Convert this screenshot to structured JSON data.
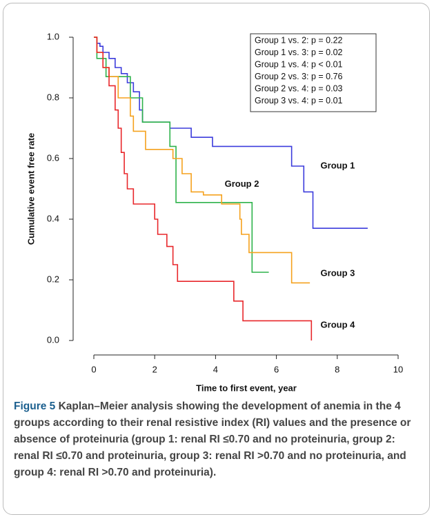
{
  "chart_data": {
    "type": "line",
    "xlabel": "Time to first event, year",
    "ylabel": "Cumulative event free rate",
    "xlim": [
      -0.5,
      10.5
    ],
    "ylim": [
      -0.05,
      1.05
    ],
    "xticks": [
      0,
      2,
      4,
      6,
      8,
      10
    ],
    "yticks": [
      {
        "value": 0,
        "label": "0.0"
      },
      {
        "value": 0.2,
        "label": "0.2"
      },
      {
        "value": 0.4,
        "label": "0.4"
      },
      {
        "value": 0.6,
        "label": "0.6"
      },
      {
        "value": 0.8,
        "label": "0.8"
      },
      {
        "value": 1,
        "label": "1.0"
      }
    ],
    "step": true,
    "annotations": [
      "Group 1 vs. 2: p = 0.22",
      "Group 1 vs. 3: p = 0.02",
      "Group 1 vs. 4: p < 0.01",
      "Group 2 vs. 3: p = 0.76",
      "Group 2 vs. 4: p = 0.03",
      "Group 3 vs. 4: p = 0.01"
    ],
    "series": [
      {
        "name": "Group 1",
        "color": "#3b3bdc",
        "x": [
          0,
          0.1,
          0.2,
          0.3,
          0.5,
          0.7,
          0.9,
          1.1,
          1.3,
          1.5,
          1.6,
          2.5,
          3.2,
          3.9,
          6.5,
          6.9,
          7.2,
          9.0
        ],
        "values": [
          1.0,
          0.98,
          0.97,
          0.95,
          0.93,
          0.9,
          0.88,
          0.85,
          0.82,
          0.76,
          0.72,
          0.7,
          0.67,
          0.64,
          0.575,
          0.49,
          0.37,
          0.37
        ]
      },
      {
        "name": "Group 2",
        "color": "#2db24a",
        "x": [
          0,
          0.1,
          0.4,
          1.2,
          1.6,
          2.5,
          2.7,
          5.2,
          5.75
        ],
        "values": [
          1.0,
          0.93,
          0.87,
          0.8,
          0.72,
          0.64,
          0.455,
          0.225,
          0.225
        ]
      },
      {
        "name": "Group 3",
        "color": "#f5a11c",
        "x": [
          0,
          0.1,
          0.3,
          0.5,
          0.8,
          1.2,
          1.3,
          1.7,
          2.6,
          2.9,
          3.2,
          3.6,
          4.2,
          4.8,
          4.85,
          5.1,
          6.5,
          7.1
        ],
        "values": [
          1.0,
          0.95,
          0.9,
          0.87,
          0.8,
          0.74,
          0.69,
          0.63,
          0.6,
          0.55,
          0.49,
          0.48,
          0.45,
          0.4,
          0.35,
          0.29,
          0.19,
          0.19
        ]
      },
      {
        "name": "Group 4",
        "color": "#e8262a",
        "x": [
          0,
          0.1,
          0.3,
          0.5,
          0.7,
          0.8,
          0.9,
          1.0,
          1.1,
          1.3,
          2.0,
          2.1,
          2.4,
          2.6,
          2.75,
          4.6,
          4.9,
          7.15,
          7.15
        ],
        "values": [
          1.0,
          0.95,
          0.9,
          0.84,
          0.76,
          0.7,
          0.62,
          0.55,
          0.5,
          0.45,
          0.4,
          0.35,
          0.31,
          0.25,
          0.195,
          0.13,
          0.065,
          0.065,
          0.0
        ]
      }
    ]
  },
  "caption": {
    "label": "Figure 5",
    "text": "Kaplan–Meier analysis showing the development of anemia in the 4 groups according to their renal resistive index (RI) values and the presence or absence of proteinuria (group 1: renal RI ≤0.70 and no proteinuria, group 2: renal RI ≤0.70 and proteinuria, group 3: renal RI >0.70 and no proteinuria, and group 4: renal RI >0.70 and proteinuria)."
  }
}
